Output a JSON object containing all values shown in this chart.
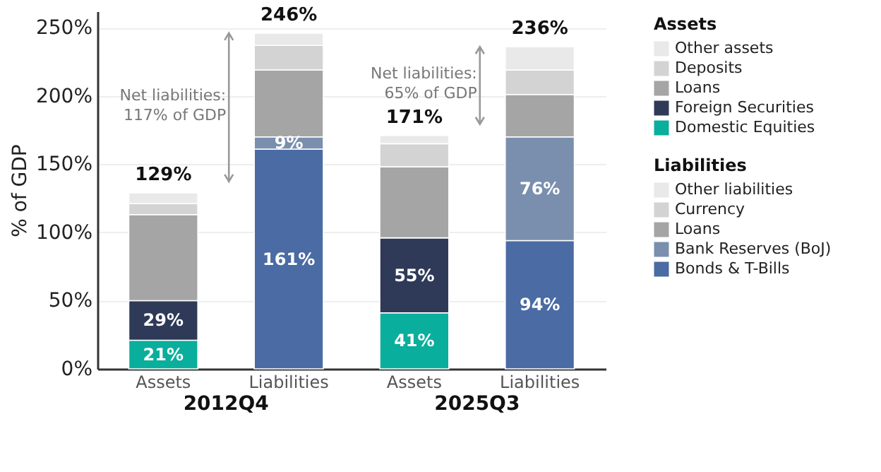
{
  "chart_data": {
    "type": "bar",
    "stacked": true,
    "categories": [
      "Assets",
      "Liabilities",
      "Assets",
      "Liabilities"
    ],
    "ylabel": "% of GDP",
    "ylim": [
      0,
      262
    ],
    "yticks": [
      {
        "value": 0,
        "label": "0%"
      },
      {
        "value": 50,
        "label": "50%"
      },
      {
        "value": 100,
        "label": "100%"
      },
      {
        "value": 150,
        "label": "150%"
      },
      {
        "value": 200,
        "label": "200%"
      },
      {
        "value": 250,
        "label": "250%"
      }
    ],
    "grid": "y",
    "legend": "right",
    "legend_title": [
      "Assets",
      "Liabilities"
    ],
    "series": [
      {
        "name": "Domestic Equities",
        "color": "#0aae9c",
        "values": [
          21,
          null,
          41,
          null
        ],
        "value_labels": [
          "21%",
          null,
          "41%",
          null
        ]
      },
      {
        "name": "Foreign Securities",
        "color": "#2e3a57",
        "values": [
          29,
          null,
          55,
          null
        ],
        "value_labels": [
          "29%",
          null,
          "55%",
          null
        ]
      },
      {
        "name": "Loans",
        "color": "#a5a5a5",
        "values": [
          63,
          null,
          52,
          null
        ]
      },
      {
        "name": "Deposits",
        "color": "#d3d3d3",
        "values": [
          8,
          null,
          17,
          null
        ]
      },
      {
        "name": "Other assets",
        "color": "#e9e9e9",
        "values": [
          8,
          null,
          6,
          null
        ]
      },
      {
        "name": "Bonds & T-Bills",
        "color": "#4a6ba3",
        "values": [
          null,
          161,
          null,
          94
        ],
        "value_labels": [
          null,
          "161%",
          null,
          "94%"
        ]
      },
      {
        "name": "Bank Reserves (BoJ)",
        "color": "#7a8fae",
        "values": [
          null,
          9,
          null,
          76
        ],
        "value_labels": [
          null,
          "9%",
          null,
          "76%"
        ]
      },
      {
        "name": "Loans",
        "color": "#a5a5a5",
        "values": [
          null,
          49,
          null,
          31
        ]
      },
      {
        "name": "Currency",
        "color": "#d3d3d3",
        "values": [
          null,
          18,
          null,
          18
        ]
      },
      {
        "name": "Other liabilities",
        "color": "#e9e9e9",
        "values": [
          null,
          9,
          null,
          17
        ]
      }
    ],
    "totals": [
      "129%",
      "246%",
      "171%",
      "236%"
    ],
    "annotations": [
      "2012Q4",
      "2025Q3",
      "Net liabilities:\n117% of GDP",
      "Net liabilities:\n65% of GDP"
    ]
  }
}
